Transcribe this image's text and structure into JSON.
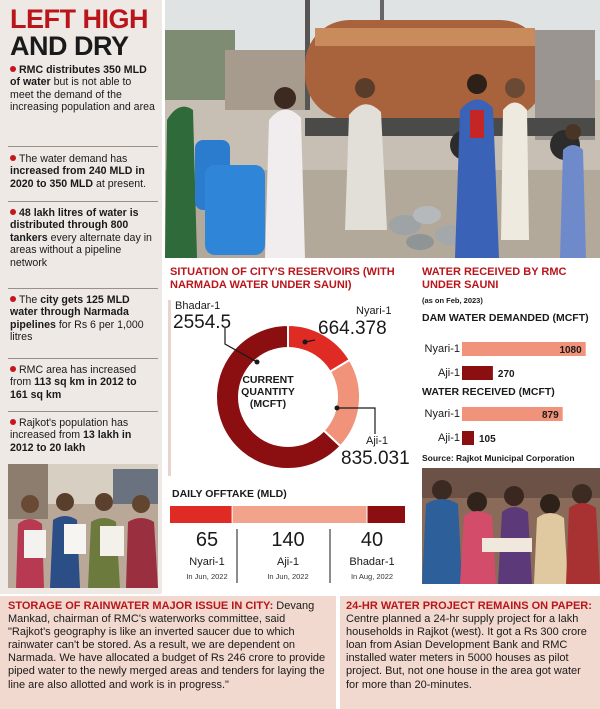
{
  "headline": {
    "line1": "LEFT HIGH",
    "line2": "AND DRY"
  },
  "bullets": [
    {
      "bold": "RMC distributes 350 MLD of water",
      "rest": " but is not able to meet the demand of the increasing population and area"
    },
    {
      "rest": "The water demand has ",
      "bold": "increased from 240 MLD in 2020 to 350 MLD",
      "rest2": " at present."
    },
    {
      "bold": "48 lakh litres of water is distributed through 800 tankers",
      "rest": " every alternate day in areas without a pipeline network"
    },
    {
      "rest": "The ",
      "bold": "city gets 125 MLD water through Narmada pipelines",
      "rest2": " for Rs 6 per 1,000 litres"
    },
    {
      "rest": "RMC area has increased from ",
      "bold": "113 sq km in 2012 to 161 sq km"
    },
    {
      "rest": "Rajkot's population has increased from ",
      "bold": "13 lakh in 2012 to 20 lakh"
    }
  ],
  "reservoirs": {
    "title": "SITUATION OF CITY'S RESERVOIRS (WITH NARMADA WATER UNDER SAUNI)",
    "center_label": "CURRENT QUANTITY (MCFT)",
    "items": [
      {
        "name": "Bhadar-1",
        "value": "2554.5",
        "color": "#8b0e11"
      },
      {
        "name": "Nyari-1",
        "value": "664.378",
        "color": "#e02a24"
      },
      {
        "name": "Aji-1",
        "value": "835.031",
        "color": "#f1937a"
      }
    ]
  },
  "offtake": {
    "title": "DAILY OFFTAKE (MLD)",
    "items": [
      {
        "value": "65",
        "name": "Nyari-1",
        "date": "In Jun, 2022",
        "color": "#e02a24"
      },
      {
        "value": "140",
        "name": "Aji-1",
        "date": "In Jun, 2022",
        "color": "#f1a38c"
      },
      {
        "value": "40",
        "name": "Bhadar-1",
        "date": "In Aug, 2022",
        "color": "#8b0e11"
      }
    ]
  },
  "received": {
    "title": "WATER RECEIVED BY RMC UNDER SAUNI",
    "asof": "(as on Feb, 2023)",
    "demanded_title": "DAM WATER DEMANDED (MCFT)",
    "received_title": "WATER RECEIVED (MCFT)",
    "source": "Source: Rajkot Municipal Corporation"
  },
  "chart_data": [
    {
      "type": "pie",
      "title": "SITUATION OF CITY'S RESERVOIRS (WITH NARMADA WATER UNDER SAUNI)",
      "center_label": "CURRENT QUANTITY (MCFT)",
      "categories": [
        "Bhadar-1",
        "Nyari-1",
        "Aji-1"
      ],
      "values": [
        2554.5,
        664.378,
        835.031
      ]
    },
    {
      "type": "bar",
      "title": "DAILY OFFTAKE (MLD)",
      "categories": [
        "Nyari-1",
        "Aji-1",
        "Bhadar-1"
      ],
      "values": [
        65,
        140,
        40
      ]
    },
    {
      "type": "bar",
      "title": "DAM WATER DEMANDED (MCFT)",
      "categories": [
        "Nyari-1",
        "Aji-1"
      ],
      "values": [
        1080,
        270
      ],
      "xlim": [
        0,
        1100
      ]
    },
    {
      "type": "bar",
      "title": "WATER RECEIVED (MCFT)",
      "categories": [
        "Nyari-1",
        "Aji-1"
      ],
      "values": [
        879,
        105
      ],
      "xlim": [
        0,
        1100
      ]
    }
  ],
  "storage": {
    "heading": "STORAGE OF RAINWATER MAJOR ISSUE IN CITY:",
    "body": " Devang Mankad, chairman of RMC's waterworks committee, said \"Rajkot's geography is like an inverted saucer due to which rainwater can't be stored. As a result, we are dependent on Narmada. We have allocated a budget of Rs 246 crore to provide piped water to the newly merged areas and tenders for laying the line are also allotted and work is in progress.\""
  },
  "project": {
    "heading": "24-HR WATER PROJECT REMAINS ON PAPER:",
    "body": " Centre planned a 24-hr supply project for a lakh households in Rajkot (west). It got a Rs 300 crore loan from Asian Development Bank and RMC installed water meters in 5000 houses as pilot project. But, not one house in the area got water for more than 20-minutes."
  },
  "colors": {
    "accent_red": "#b9151b",
    "dark_red": "#8b0e11",
    "mid_red": "#e02a24",
    "salmon": "#f1937a",
    "band_bg": "#f1d9cf",
    "panel_bg": "#efe9e6"
  }
}
